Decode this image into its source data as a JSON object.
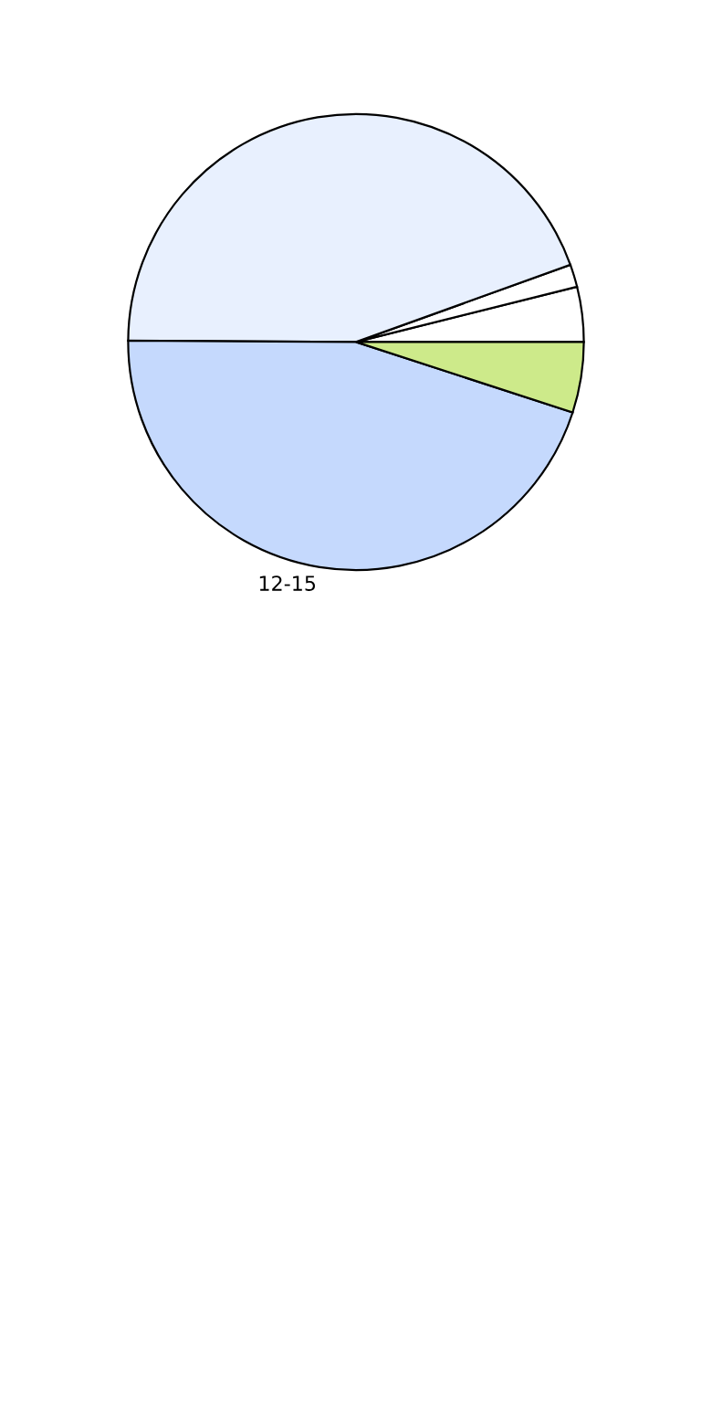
{
  "chart_data": {
    "type": "pie",
    "categories": [
      null,
      null,
      null,
      "12-15",
      null
    ],
    "values": [
      3.9,
      1.6,
      44.4,
      45.1,
      5.0
    ],
    "colors": [
      "#ffffff",
      "#ffffff",
      "#e8f0fe",
      "#c5d9fd",
      "#cdea8a"
    ]
  }
}
